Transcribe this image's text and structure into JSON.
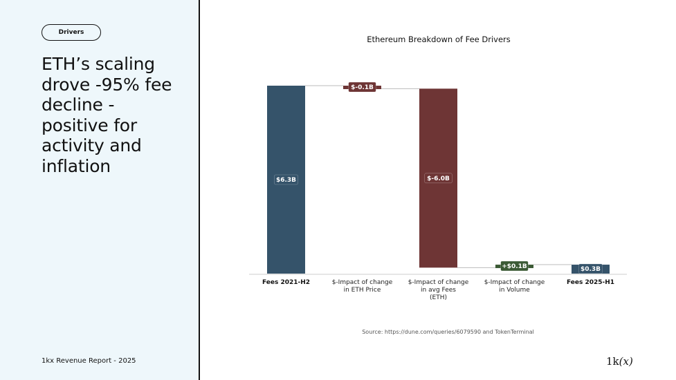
{
  "sidebar": {
    "tag": "Drivers",
    "headline_lines": [
      "ETH’s scaling",
      "drove -95% fee",
      "decline -",
      "positive for",
      "activity and",
      "inflation"
    ],
    "footer": "1kx Revenue Report  - 2025",
    "logo_main": "1k",
    "logo_italic": "(x)"
  },
  "source": "Source: https://dune.com/queries/6079590 and TokenTerminal",
  "colors": {
    "base": "#35536a",
    "decrease": "#6e3535",
    "increase": "#3b5a35",
    "final": "#35536a"
  },
  "chart_data": {
    "type": "bar",
    "subtype": "waterfall",
    "title": "Ethereum Breakdown of Fee Drivers",
    "xlabel": "",
    "ylabel": "",
    "unit": "$B",
    "categories": [
      [
        "Fees 2021-H2"
      ],
      [
        "$-Impact of change",
        "in ETH Price"
      ],
      [
        "$-Impact of change",
        "in avg Fees",
        "(ETH)"
      ],
      [
        "$-Impact of change",
        "in Volume"
      ],
      [
        "Fees 2025-H1"
      ]
    ],
    "values": [
      6.3,
      -0.1,
      -6.0,
      0.1,
      0.3
    ],
    "kinds": [
      "total",
      "delta",
      "delta",
      "delta",
      "total"
    ],
    "data_labels": [
      "$6.3B",
      "$-0.1B",
      "$-6.0B",
      "+$0.1B",
      "$0.3B"
    ],
    "ylim": [
      0,
      6.3
    ],
    "grid": false,
    "legend": "none"
  }
}
